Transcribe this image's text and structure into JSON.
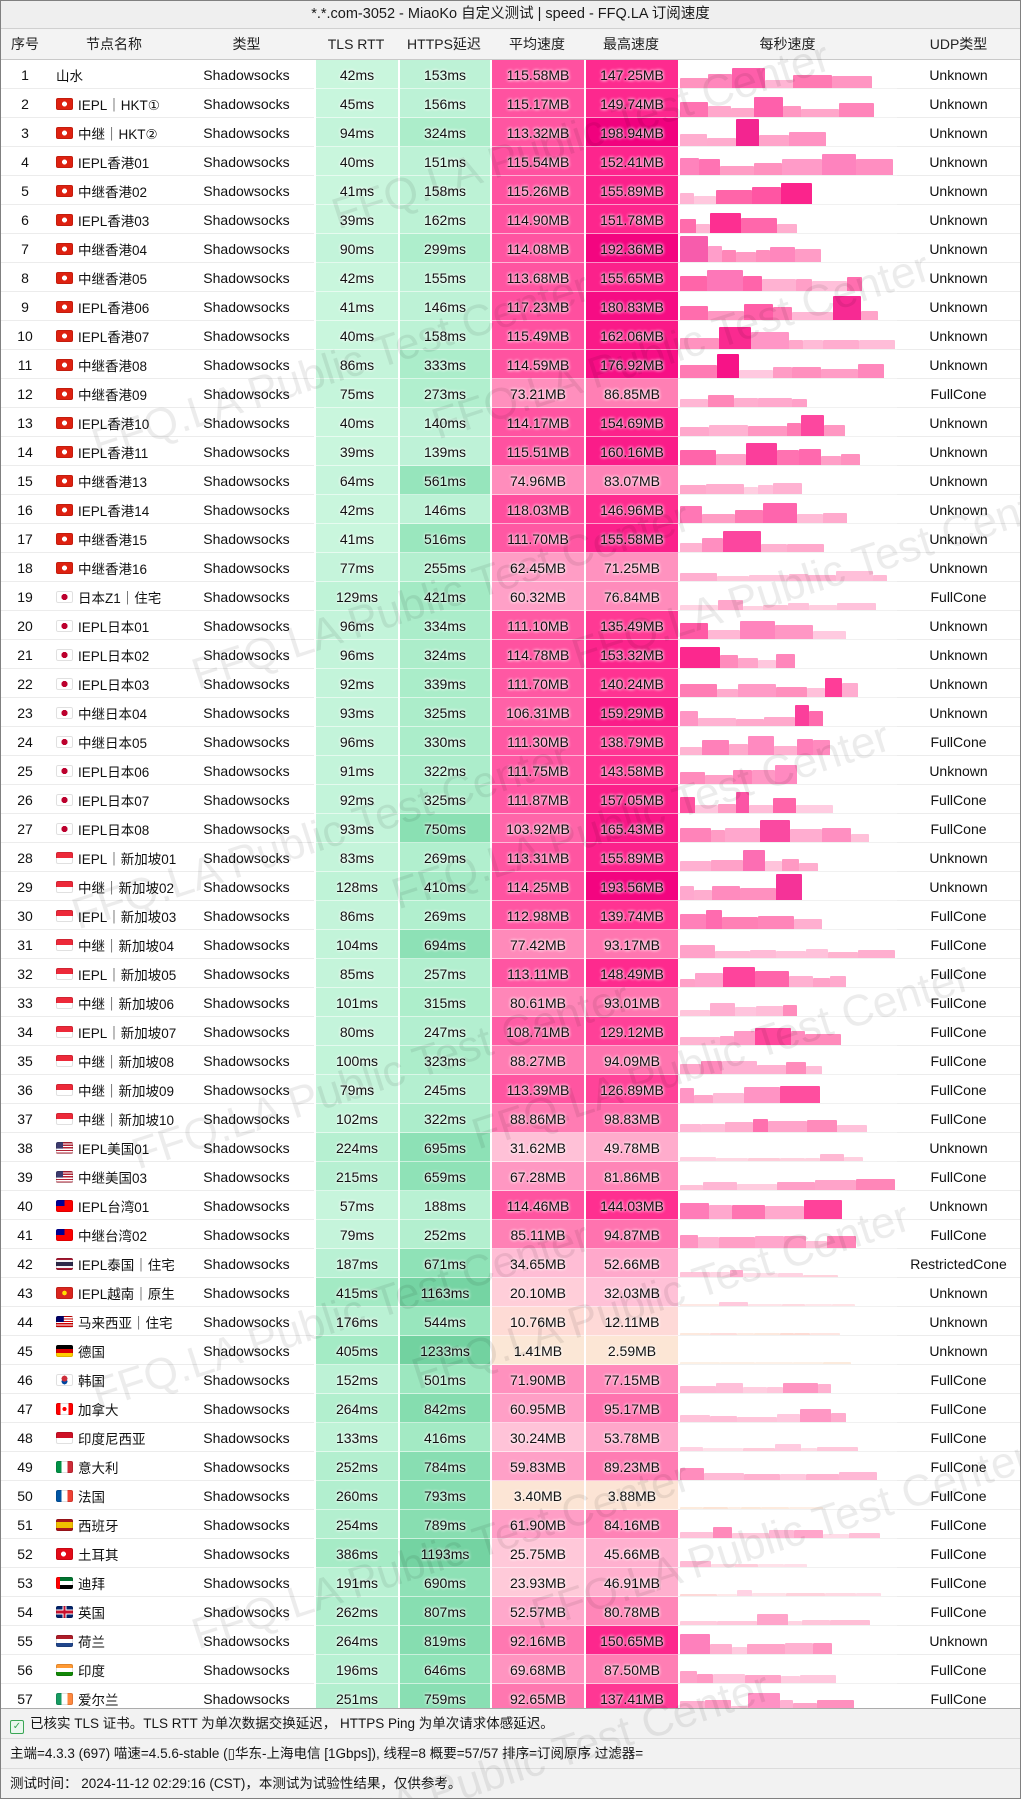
{
  "title": "*.*.com-3052 - MiaoKo 自定义测试 | speed - FFQ.LA 订阅速度",
  "columns": [
    "序号",
    "节点名称",
    "类型",
    "TLS RTT",
    "HTTPS延迟",
    "平均速度",
    "最高速度",
    "每秒速度",
    "UDP类型"
  ],
  "watermark": "FFQ.LA Public Test Center",
  "colors": {
    "speed_scale_low": "#FBE9D7",
    "speed_scale_high": "#F1007E",
    "latency_scale_low": "#CDF7E0",
    "latency_scale_high": "#6FD09E",
    "header_bg": "#f3f3f3",
    "checkbox_green": "#3aa655"
  },
  "units": {
    "latency": "ms",
    "speed": "MB"
  },
  "footer": {
    "line1": "已核实 TLS 证书。TLS RTT 为单次数据交换延迟， HTTPS Ping 为单次请求体感延迟。",
    "line2": "主端=4.3.3 (697) 喵速=4.5.6-stable (▯华东-上海电信 [1Gbps]), 线程=8 概要=57/57 排序=订阅原序 过滤器=",
    "line3": "测试时间： 2024-11-12 02:29:16 (CST)，本测试为试验性结果，仅供参考。"
  },
  "rows": [
    {
      "no": 1,
      "flag": null,
      "name": "山水",
      "type": "Shadowsocks",
      "tls_rtt": 42,
      "https": 153,
      "avg": 115.58,
      "max": 147.25,
      "udp": "Unknown"
    },
    {
      "no": 2,
      "flag": "hk",
      "name": "IEPL｜HKT①",
      "type": "Shadowsocks",
      "tls_rtt": 45,
      "https": 156,
      "avg": 115.17,
      "max": 149.74,
      "udp": "Unknown"
    },
    {
      "no": 3,
      "flag": "hk",
      "name": "中继｜HKT②",
      "type": "Shadowsocks",
      "tls_rtt": 94,
      "https": 324,
      "avg": 113.32,
      "max": 198.94,
      "udp": "Unknown"
    },
    {
      "no": 4,
      "flag": "hk",
      "name": "IEPL香港01",
      "type": "Shadowsocks",
      "tls_rtt": 40,
      "https": 151,
      "avg": 115.54,
      "max": 152.41,
      "udp": "Unknown"
    },
    {
      "no": 5,
      "flag": "hk",
      "name": "中继香港02",
      "type": "Shadowsocks",
      "tls_rtt": 41,
      "https": 158,
      "avg": 115.26,
      "max": 155.89,
      "udp": "Unknown"
    },
    {
      "no": 6,
      "flag": "hk",
      "name": "IEPL香港03",
      "type": "Shadowsocks",
      "tls_rtt": 39,
      "https": 162,
      "avg": 114.9,
      "max": 151.78,
      "udp": "Unknown"
    },
    {
      "no": 7,
      "flag": "hk",
      "name": "中继香港04",
      "type": "Shadowsocks",
      "tls_rtt": 90,
      "https": 299,
      "avg": 114.08,
      "max": 192.36,
      "udp": "Unknown"
    },
    {
      "no": 8,
      "flag": "hk",
      "name": "中继香港05",
      "type": "Shadowsocks",
      "tls_rtt": 42,
      "https": 155,
      "avg": 113.68,
      "max": 155.65,
      "udp": "Unknown"
    },
    {
      "no": 9,
      "flag": "hk",
      "name": "IEPL香港06",
      "type": "Shadowsocks",
      "tls_rtt": 41,
      "https": 146,
      "avg": 117.23,
      "max": 180.83,
      "udp": "Unknown"
    },
    {
      "no": 10,
      "flag": "hk",
      "name": "IEPL香港07",
      "type": "Shadowsocks",
      "tls_rtt": 40,
      "https": 158,
      "avg": 115.49,
      "max": 162.06,
      "udp": "Unknown"
    },
    {
      "no": 11,
      "flag": "hk",
      "name": "中继香港08",
      "type": "Shadowsocks",
      "tls_rtt": 86,
      "https": 333,
      "avg": 114.59,
      "max": 176.92,
      "udp": "Unknown"
    },
    {
      "no": 12,
      "flag": "hk",
      "name": "中继香港09",
      "type": "Shadowsocks",
      "tls_rtt": 75,
      "https": 273,
      "avg": 73.21,
      "max": 86.85,
      "udp": "FullCone"
    },
    {
      "no": 13,
      "flag": "hk",
      "name": "IEPL香港10",
      "type": "Shadowsocks",
      "tls_rtt": 40,
      "https": 140,
      "avg": 114.17,
      "max": 154.69,
      "udp": "Unknown"
    },
    {
      "no": 14,
      "flag": "hk",
      "name": "IEPL香港11",
      "type": "Shadowsocks",
      "tls_rtt": 39,
      "https": 139,
      "avg": 115.51,
      "max": 160.16,
      "udp": "Unknown"
    },
    {
      "no": 15,
      "flag": "hk",
      "name": "中继香港13",
      "type": "Shadowsocks",
      "tls_rtt": 64,
      "https": 561,
      "avg": 74.96,
      "max": 83.07,
      "udp": "Unknown"
    },
    {
      "no": 16,
      "flag": "hk",
      "name": "IEPL香港14",
      "type": "Shadowsocks",
      "tls_rtt": 42,
      "https": 146,
      "avg": 118.03,
      "max": 146.96,
      "udp": "Unknown"
    },
    {
      "no": 17,
      "flag": "hk",
      "name": "中继香港15",
      "type": "Shadowsocks",
      "tls_rtt": 41,
      "https": 516,
      "avg": 111.7,
      "max": 155.58,
      "udp": "Unknown"
    },
    {
      "no": 18,
      "flag": "hk",
      "name": "中继香港16",
      "type": "Shadowsocks",
      "tls_rtt": 77,
      "https": 255,
      "avg": 62.45,
      "max": 71.25,
      "udp": "Unknown"
    },
    {
      "no": 19,
      "flag": "jp",
      "name": "日本Z1｜住宅",
      "type": "Shadowsocks",
      "tls_rtt": 129,
      "https": 421,
      "avg": 60.32,
      "max": 76.84,
      "udp": "FullCone"
    },
    {
      "no": 20,
      "flag": "jp",
      "name": "IEPL日本01",
      "type": "Shadowsocks",
      "tls_rtt": 96,
      "https": 334,
      "avg": 111.1,
      "max": 135.49,
      "udp": "Unknown"
    },
    {
      "no": 21,
      "flag": "jp",
      "name": "IEPL日本02",
      "type": "Shadowsocks",
      "tls_rtt": 96,
      "https": 324,
      "avg": 114.78,
      "max": 153.32,
      "udp": "Unknown"
    },
    {
      "no": 22,
      "flag": "jp",
      "name": "IEPL日本03",
      "type": "Shadowsocks",
      "tls_rtt": 92,
      "https": 339,
      "avg": 111.7,
      "max": 140.24,
      "udp": "Unknown"
    },
    {
      "no": 23,
      "flag": "jp",
      "name": "中继日本04",
      "type": "Shadowsocks",
      "tls_rtt": 93,
      "https": 325,
      "avg": 106.31,
      "max": 159.29,
      "udp": "Unknown"
    },
    {
      "no": 24,
      "flag": "jp",
      "name": "中继日本05",
      "type": "Shadowsocks",
      "tls_rtt": 96,
      "https": 330,
      "avg": 111.3,
      "max": 138.79,
      "udp": "FullCone"
    },
    {
      "no": 25,
      "flag": "jp",
      "name": "IEPL日本06",
      "type": "Shadowsocks",
      "tls_rtt": 91,
      "https": 322,
      "avg": 111.75,
      "max": 143.58,
      "udp": "Unknown"
    },
    {
      "no": 26,
      "flag": "jp",
      "name": "IEPL日本07",
      "type": "Shadowsocks",
      "tls_rtt": 92,
      "https": 325,
      "avg": 111.87,
      "max": 157.05,
      "udp": "FullCone"
    },
    {
      "no": 27,
      "flag": "jp",
      "name": "IEPL日本08",
      "type": "Shadowsocks",
      "tls_rtt": 93,
      "https": 750,
      "avg": 103.92,
      "max": 165.43,
      "udp": "FullCone"
    },
    {
      "no": 28,
      "flag": "sg",
      "name": "IEPL｜新加坡01",
      "type": "Shadowsocks",
      "tls_rtt": 83,
      "https": 269,
      "avg": 113.31,
      "max": 155.89,
      "udp": "Unknown"
    },
    {
      "no": 29,
      "flag": "sg",
      "name": "中继｜新加坡02",
      "type": "Shadowsocks",
      "tls_rtt": 128,
      "https": 410,
      "avg": 114.25,
      "max": 193.56,
      "udp": "Unknown"
    },
    {
      "no": 30,
      "flag": "sg",
      "name": "IEPL｜新加坡03",
      "type": "Shadowsocks",
      "tls_rtt": 86,
      "https": 269,
      "avg": 112.98,
      "max": 139.74,
      "udp": "FullCone"
    },
    {
      "no": 31,
      "flag": "sg",
      "name": "中继｜新加坡04",
      "type": "Shadowsocks",
      "tls_rtt": 104,
      "https": 694,
      "avg": 77.42,
      "max": 93.17,
      "udp": "FullCone"
    },
    {
      "no": 32,
      "flag": "sg",
      "name": "IEPL｜新加坡05",
      "type": "Shadowsocks",
      "tls_rtt": 85,
      "https": 257,
      "avg": 113.11,
      "max": 148.49,
      "udp": "FullCone"
    },
    {
      "no": 33,
      "flag": "sg",
      "name": "中继｜新加坡06",
      "type": "Shadowsocks",
      "tls_rtt": 101,
      "https": 315,
      "avg": 80.61,
      "max": 93.01,
      "udp": "FullCone"
    },
    {
      "no": 34,
      "flag": "sg",
      "name": "IEPL｜新加坡07",
      "type": "Shadowsocks",
      "tls_rtt": 80,
      "https": 247,
      "avg": 108.71,
      "max": 129.12,
      "udp": "FullCone"
    },
    {
      "no": 35,
      "flag": "sg",
      "name": "中继｜新加坡08",
      "type": "Shadowsocks",
      "tls_rtt": 100,
      "https": 323,
      "avg": 88.27,
      "max": 94.09,
      "udp": "FullCone"
    },
    {
      "no": 36,
      "flag": "sg",
      "name": "中继｜新加坡09",
      "type": "Shadowsocks",
      "tls_rtt": 79,
      "https": 245,
      "avg": 113.39,
      "max": 126.89,
      "udp": "FullCone"
    },
    {
      "no": 37,
      "flag": "sg",
      "name": "中继｜新加坡10",
      "type": "Shadowsocks",
      "tls_rtt": 102,
      "https": 322,
      "avg": 88.86,
      "max": 98.83,
      "udp": "FullCone"
    },
    {
      "no": 38,
      "flag": "us",
      "name": "IEPL美国01",
      "type": "Shadowsocks",
      "tls_rtt": 224,
      "https": 695,
      "avg": 31.62,
      "max": 49.78,
      "udp": "Unknown"
    },
    {
      "no": 39,
      "flag": "us",
      "name": "中继美国03",
      "type": "Shadowsocks",
      "tls_rtt": 215,
      "https": 659,
      "avg": 67.28,
      "max": 81.86,
      "udp": "FullCone"
    },
    {
      "no": 40,
      "flag": "tw",
      "name": "IEPL台湾01",
      "type": "Shadowsocks",
      "tls_rtt": 57,
      "https": 188,
      "avg": 114.46,
      "max": 144.03,
      "udp": "Unknown"
    },
    {
      "no": 41,
      "flag": "tw",
      "name": "中继台湾02",
      "type": "Shadowsocks",
      "tls_rtt": 79,
      "https": 252,
      "avg": 85.11,
      "max": 94.87,
      "udp": "FullCone"
    },
    {
      "no": 42,
      "flag": "th",
      "name": "IEPL泰国｜住宅",
      "type": "Shadowsocks",
      "tls_rtt": 187,
      "https": 671,
      "avg": 34.65,
      "max": 52.66,
      "udp": "RestrictedCone"
    },
    {
      "no": 43,
      "flag": "vn",
      "name": "IEPL越南｜原生",
      "type": "Shadowsocks",
      "tls_rtt": 415,
      "https": 1163,
      "avg": 20.1,
      "max": 32.03,
      "udp": "Unknown"
    },
    {
      "no": 44,
      "flag": "my",
      "name": "马来西亚｜住宅",
      "type": "Shadowsocks",
      "tls_rtt": 176,
      "https": 544,
      "avg": 10.76,
      "max": 12.11,
      "udp": "Unknown"
    },
    {
      "no": 45,
      "flag": "de",
      "name": "德国",
      "type": "Shadowsocks",
      "tls_rtt": 405,
      "https": 1233,
      "avg": 1.41,
      "max": 2.59,
      "udp": "Unknown"
    },
    {
      "no": 46,
      "flag": "kr",
      "name": "韩国",
      "type": "Shadowsocks",
      "tls_rtt": 152,
      "https": 501,
      "avg": 71.9,
      "max": 77.15,
      "udp": "FullCone"
    },
    {
      "no": 47,
      "flag": "ca",
      "name": "加拿大",
      "type": "Shadowsocks",
      "tls_rtt": 264,
      "https": 842,
      "avg": 60.95,
      "max": 95.17,
      "udp": "FullCone"
    },
    {
      "no": 48,
      "flag": "id",
      "name": "印度尼西亚",
      "type": "Shadowsocks",
      "tls_rtt": 133,
      "https": 416,
      "avg": 30.24,
      "max": 53.78,
      "udp": "FullCone"
    },
    {
      "no": 49,
      "flag": "it",
      "name": "意大利",
      "type": "Shadowsocks",
      "tls_rtt": 252,
      "https": 784,
      "avg": 59.83,
      "max": 89.23,
      "udp": "FullCone"
    },
    {
      "no": 50,
      "flag": "fr",
      "name": "法国",
      "type": "Shadowsocks",
      "tls_rtt": 260,
      "https": 793,
      "avg": 3.4,
      "max": 3.88,
      "udp": "FullCone"
    },
    {
      "no": 51,
      "flag": "es",
      "name": "西班牙",
      "type": "Shadowsocks",
      "tls_rtt": 254,
      "https": 789,
      "avg": 61.9,
      "max": 84.16,
      "udp": "FullCone"
    },
    {
      "no": 52,
      "flag": "tr",
      "name": "土耳其",
      "type": "Shadowsocks",
      "tls_rtt": 386,
      "https": 1193,
      "avg": 25.75,
      "max": 45.66,
      "udp": "FullCone"
    },
    {
      "no": 53,
      "flag": "ae",
      "name": "迪拜",
      "type": "Shadowsocks",
      "tls_rtt": 191,
      "https": 690,
      "avg": 23.93,
      "max": 46.91,
      "udp": "FullCone"
    },
    {
      "no": 54,
      "flag": "gb",
      "name": "英国",
      "type": "Shadowsocks",
      "tls_rtt": 262,
      "https": 807,
      "avg": 52.57,
      "max": 80.78,
      "udp": "FullCone"
    },
    {
      "no": 55,
      "flag": "nl",
      "name": "荷兰",
      "type": "Shadowsocks",
      "tls_rtt": 264,
      "https": 819,
      "avg": 92.16,
      "max": 150.65,
      "udp": "Unknown"
    },
    {
      "no": 56,
      "flag": "in",
      "name": "印度",
      "type": "Shadowsocks",
      "tls_rtt": 196,
      "https": 646,
      "avg": 69.68,
      "max": 87.5,
      "udp": "FullCone"
    },
    {
      "no": 57,
      "flag": "ie",
      "name": "爱尔兰",
      "type": "Shadowsocks",
      "tls_rtt": 251,
      "https": 759,
      "avg": 92.65,
      "max": 137.41,
      "udp": "FullCone"
    }
  ]
}
